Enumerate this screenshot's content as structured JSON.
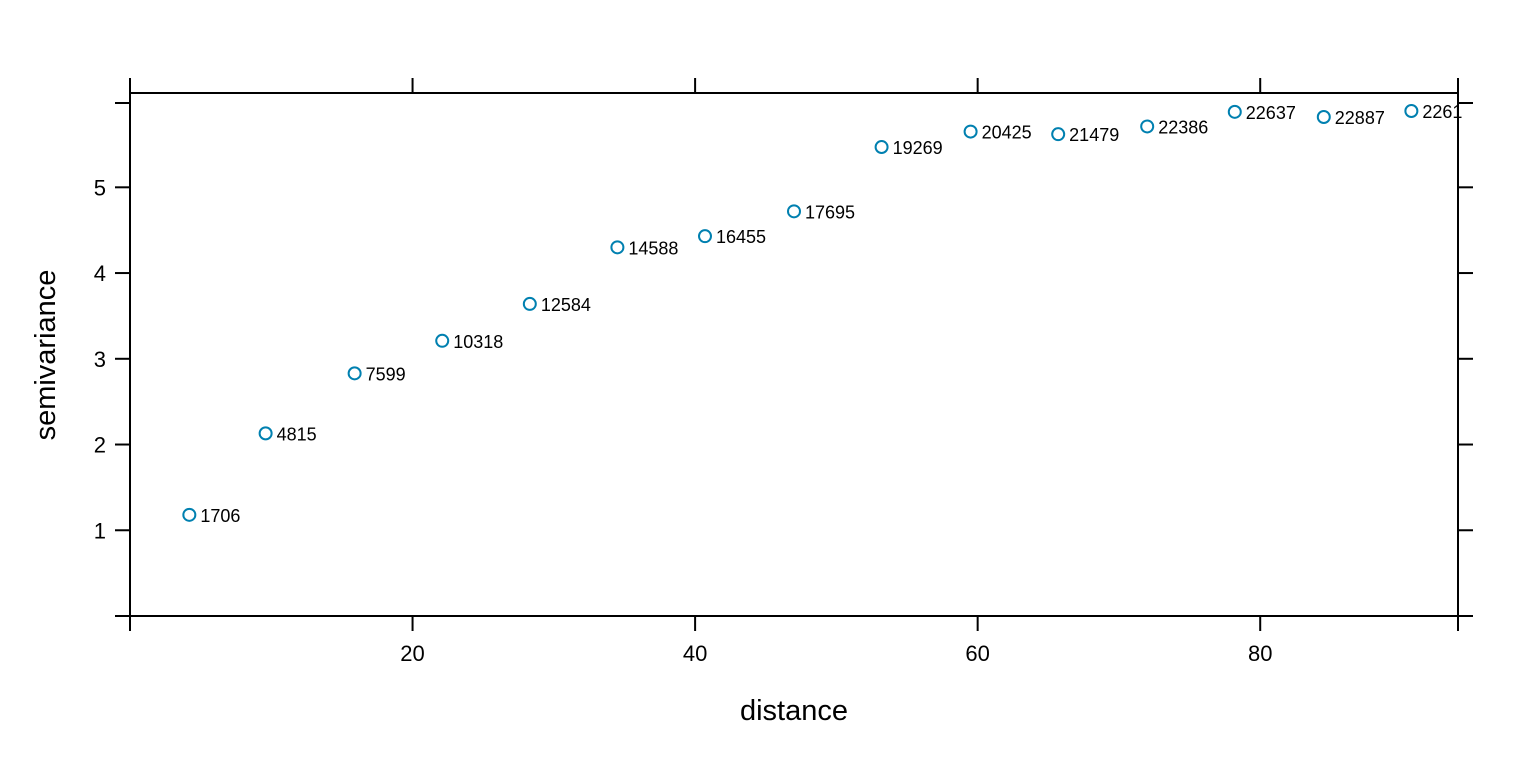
{
  "chart_data": {
    "type": "scatter",
    "title": "",
    "xlabel": "distance",
    "ylabel": "semivariance",
    "xlim": [
      0,
      94
    ],
    "ylim": [
      0,
      6.1
    ],
    "x_ticks": [
      20,
      40,
      60,
      80
    ],
    "y_ticks": [
      1,
      2,
      3,
      4,
      5
    ],
    "grid": false,
    "marker": "open-circle",
    "point_color": "#0080B0",
    "points": [
      {
        "x": 4.2,
        "y": 1.18,
        "label": "1706"
      },
      {
        "x": 9.6,
        "y": 2.13,
        "label": "4815"
      },
      {
        "x": 15.9,
        "y": 2.83,
        "label": "7599"
      },
      {
        "x": 22.1,
        "y": 3.21,
        "label": "10318"
      },
      {
        "x": 28.3,
        "y": 3.64,
        "label": "12584"
      },
      {
        "x": 34.5,
        "y": 4.3,
        "label": "14588"
      },
      {
        "x": 40.7,
        "y": 4.43,
        "label": "16455"
      },
      {
        "x": 47.0,
        "y": 4.72,
        "label": "17695"
      },
      {
        "x": 53.2,
        "y": 5.47,
        "label": "19269"
      },
      {
        "x": 59.5,
        "y": 5.65,
        "label": "20425"
      },
      {
        "x": 65.7,
        "y": 5.62,
        "label": "21479"
      },
      {
        "x": 72.0,
        "y": 5.71,
        "label": "22386"
      },
      {
        "x": 78.2,
        "y": 5.88,
        "label": "22637"
      },
      {
        "x": 84.5,
        "y": 5.82,
        "label": "22887"
      },
      {
        "x": 90.7,
        "y": 5.89,
        "label": "2261"
      }
    ]
  }
}
